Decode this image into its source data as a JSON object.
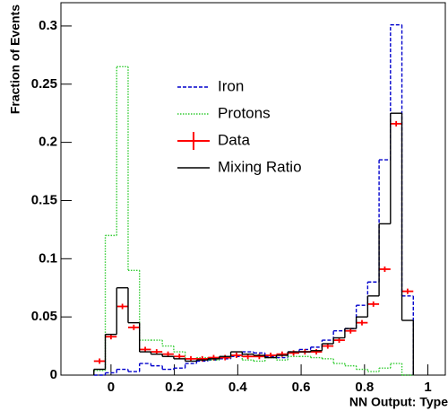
{
  "chart_data": {
    "type": "histogram",
    "xlabel": "NN Output: Type",
    "ylabel": "Fraction of Events",
    "bins": [
      -0.054,
      -0.018,
      0.018,
      0.054,
      0.09,
      0.126,
      0.162,
      0.198,
      0.234,
      0.27,
      0.306,
      0.342,
      0.378,
      0.414,
      0.45,
      0.486,
      0.522,
      0.558,
      0.594,
      0.63,
      0.666,
      0.702,
      0.738,
      0.774,
      0.81,
      0.846,
      0.882,
      0.918,
      0.954
    ],
    "series": [
      {
        "name": "Iron",
        "color": "#0000cc",
        "line_style": "dashed",
        "values": [
          0,
          0.002,
          0.005,
          0.003,
          0.01,
          0.008,
          0.005,
          0.006,
          0.01,
          0.012,
          0.013,
          0.014,
          0.016,
          0.02,
          0.019,
          0.016,
          0.015,
          0.02,
          0.022,
          0.024,
          0.03,
          0.038,
          0.04,
          0.06,
          0.08,
          0.185,
          0.301,
          0.068
        ]
      },
      {
        "name": "Protons",
        "color": "#33cc33",
        "line_style": "dotted",
        "values": [
          0.004,
          0.12,
          0.265,
          0.09,
          0.03,
          0.03,
          0.025,
          0.02,
          0.014,
          0.015,
          0.013,
          0.015,
          0.017,
          0.013,
          0.012,
          0.015,
          0.013,
          0.016,
          0.016,
          0.015,
          0.014,
          0.01,
          0.008,
          0.005,
          0.003,
          0.006,
          0.01,
          0
        ]
      },
      {
        "name": "Data",
        "color": "#ff0000",
        "line_style": "cross",
        "values": [
          0.012,
          0.033,
          0.059,
          0.041,
          0.022,
          0.02,
          0.018,
          0.016,
          0.014,
          0.014,
          0.015,
          0.015,
          0.017,
          0.016,
          0.016,
          0.017,
          0.018,
          0.019,
          0.02,
          0.02,
          0.025,
          0.03,
          0.038,
          0.045,
          0.061,
          0.091,
          0.216,
          0.072
        ]
      },
      {
        "name": "Mixing Ratio",
        "color": "#000000",
        "line_style": "solid",
        "values": [
          0.005,
          0.035,
          0.075,
          0.045,
          0.02,
          0.018,
          0.016,
          0.014,
          0.012,
          0.013,
          0.014,
          0.016,
          0.02,
          0.018,
          0.017,
          0.015,
          0.017,
          0.02,
          0.02,
          0.021,
          0.027,
          0.032,
          0.04,
          0.05,
          0.068,
          0.13,
          0.225,
          0.047
        ]
      }
    ],
    "xlim": [
      -0.158,
      1.055
    ],
    "xticks": [
      0,
      0.2,
      0.4,
      0.6,
      0.8,
      1
    ],
    "ylim": [
      0,
      0.32
    ],
    "yticks": [
      0,
      0.05,
      0.1,
      0.15,
      0.2,
      0.25,
      0.3
    ],
    "legend": "upper-left"
  }
}
